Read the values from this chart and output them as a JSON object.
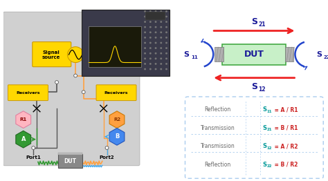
{
  "fig_bg": "#ffffff",
  "panel_bg": "#d0d0d0",
  "panel_edge": "#bbbbbb",
  "na_body": "#3a3a4a",
  "na_screen_bg": "#1a1a0a",
  "na_screen_edge": "#666666",
  "signal_source_color": "#FFD700",
  "signal_source_edge": "#cc9900",
  "receivers_color": "#FFD700",
  "receivers_edge": "#cc9900",
  "r1_color": "#FFB6C1",
  "r1_edge": "#e080a0",
  "r2_color": "#FFA040",
  "r2_edge": "#cc7700",
  "a_color": "#339933",
  "a_edge": "#226622",
  "b_color": "#4488ee",
  "b_edge": "#2255bb",
  "dut_bottom_color": "#888888",
  "dut_bottom_edge": "#555555",
  "dut_top_color": "#aaaaaa",
  "wire_dark": "#555555",
  "wire_orange": "#FFA040",
  "wire_green": "#339933",
  "wire_blue": "#44aaee",
  "connector_color": "#888888",
  "arrow_red": "#ee2222",
  "arrow_blue": "#2244cc",
  "text_blue_dark": "#1a1a99",
  "text_black": "#222222",
  "teal_color": "#009999",
  "red_color": "#cc2222",
  "table_border": "#aaccee",
  "table_bg": "#ffffff",
  "port1_label": "Port1",
  "port2_label": "Port2",
  "signal_source_label": "Signal\nsource",
  "receivers_label": "Receivers",
  "r1_label": "R1",
  "r2_label": "R2",
  "a_label": "A",
  "b_label": "B",
  "dut_bottom_label": "DUT",
  "dut_diagram_label": "DUT",
  "s11_label": "S",
  "s12_label": "S",
  "s21_label": "S",
  "s22_label": "S",
  "table_cat": [
    "Reflection",
    "Transmission",
    "Transmission",
    "Reflection"
  ],
  "table_s": [
    "S",
    "S",
    "S",
    "S"
  ],
  "table_s_sub": [
    "11",
    "21",
    "12",
    "22"
  ],
  "table_eq": [
    " = A / R1",
    " = B / R1",
    " = A / R2",
    " = B / R2"
  ]
}
